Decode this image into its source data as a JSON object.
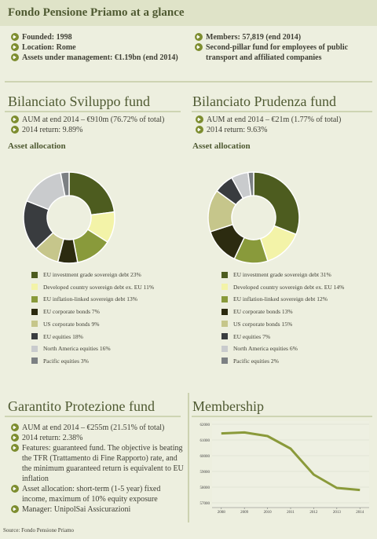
{
  "header": {
    "title": "Fondo Pensione Priamo at a glance"
  },
  "facts": {
    "left": [
      "Founded: 1998",
      "Location: Rome",
      "Assets under management: €1.19bn (end 2014)"
    ],
    "right": [
      "Members: 57,819 (end 2014)",
      "Second-pillar fund for employees of public transport and affiliated companies"
    ]
  },
  "funds": [
    {
      "title": "Bilanciato Sviluppo fund",
      "bullets": [
        "AUM at end 2014 – €910m (76.72% of total)",
        "2014 return: 9.89%"
      ]
    },
    {
      "title": "Bilanciato Prudenza fund",
      "bullets": [
        "AUM at end 2014 – €21m (1.77% of total)",
        "2014 return: 9.63%"
      ]
    }
  ],
  "garantito": {
    "title": "Garantito Protezione fund",
    "bullets": [
      "AUM at end 2014 – €255m (21.51% of total)",
      "2014 return: 2.38%",
      "Features: guaranteed fund. The objective is beating the TFR (Trattamento di Fine Rapporto) rate, and the minimum guaranteed return is equivalent to EU inflation",
      "Asset allocation: short-term (1-5 year) fixed income, maximum of 10% equity exposure",
      "Manager: UnipolSai Assicurazioni"
    ]
  },
  "source": "Source: Fondo Pensione Priamo",
  "chart_data": [
    {
      "type": "pie",
      "title": "Asset allocation",
      "categories": [
        "EU investment grade sovereign debt",
        "Developed country sovereign debt ex. EU",
        "EU inflation-linked sovereign debt",
        "EU corporate bonds",
        "US corporate bonds",
        "EU equities",
        "North America equities",
        "Pacific equities"
      ],
      "values": [
        23,
        11,
        13,
        7,
        9,
        18,
        16,
        3
      ],
      "value_labels": [
        "23%",
        "11%",
        "13%",
        "7%",
        "9%",
        "18%",
        "16%",
        "3%"
      ],
      "colors": [
        "#4d5c1f",
        "#f3f3a8",
        "#899a3b",
        "#2c2b10",
        "#c6c68b",
        "#393c3f",
        "#c9cbcd",
        "#7c8083"
      ]
    },
    {
      "type": "pie",
      "title": "Asset allocation",
      "categories": [
        "EU investment grade sovereign debt",
        "Developed country sovereign debt ex. EU",
        "EU inflation-linked sovereign debt",
        "EU corporate bonds",
        "US corporate bonds",
        "EU equities",
        "North America equities",
        "Pacific equities"
      ],
      "values": [
        31,
        14,
        12,
        13,
        15,
        7,
        6,
        2
      ],
      "value_labels": [
        "31%",
        "14%",
        "12%",
        "13%",
        "15%",
        "7%",
        "6%",
        "2%"
      ],
      "colors": [
        "#4d5c1f",
        "#f3f3a8",
        "#899a3b",
        "#2c2b10",
        "#c6c68b",
        "#393c3f",
        "#c9cbcd",
        "#7c8083"
      ]
    },
    {
      "type": "line",
      "title": "Membership",
      "x": [
        2008,
        2009,
        2010,
        2011,
        2012,
        2013,
        2014
      ],
      "values": [
        61420,
        61480,
        61250,
        60450,
        58800,
        57950,
        57819
      ],
      "color": "#8a9a3a",
      "xlim": [
        2007.6,
        2014.4
      ],
      "xticks": [
        2008,
        2009,
        2010,
        2011,
        2012,
        2013,
        2014
      ],
      "ylim": [
        56700,
        62200
      ],
      "yticks": [
        57000,
        58000,
        59000,
        60000,
        61000,
        62000
      ]
    }
  ]
}
